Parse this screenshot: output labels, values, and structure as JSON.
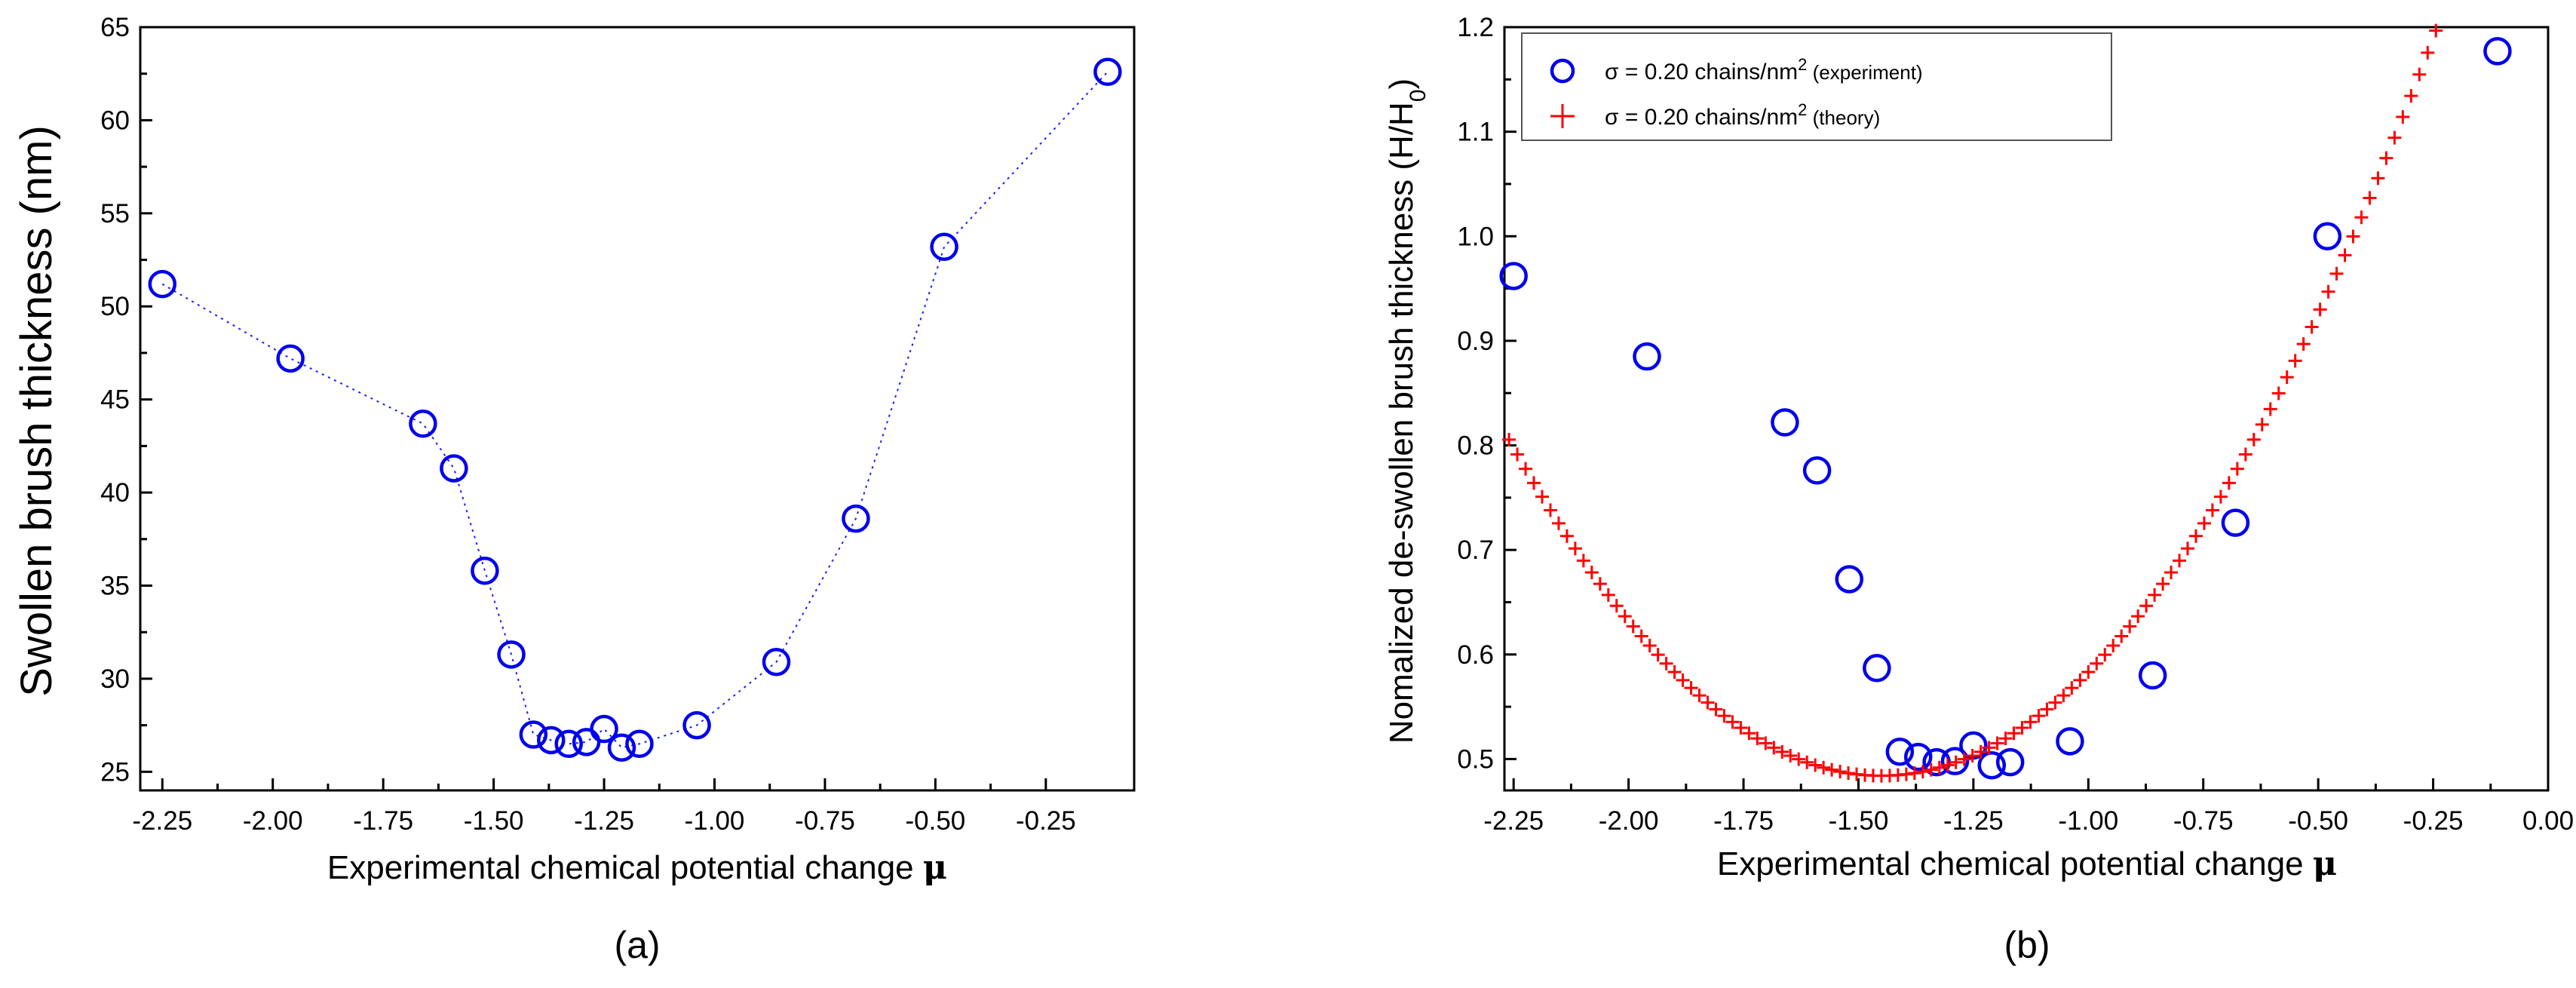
{
  "chart_data": [
    {
      "type": "line",
      "panel_label": "(a)",
      "xlabel": "Experimental chemical potential change",
      "xlabel_symbol": "μ",
      "ylabel": "Swollen brush thickness (nm)",
      "xlim": [
        -2.3,
        -0.05
      ],
      "ylim": [
        24,
        65
      ],
      "xticks": [
        -2.25,
        -2.0,
        -1.75,
        -1.5,
        -1.25,
        -1.0,
        -0.75,
        -0.5,
        -0.25
      ],
      "xtick_labels": [
        "-2.25",
        "-2.00",
        "-1.75",
        "-1.50",
        "-1.25",
        "-1.00",
        "-0.75",
        "-0.50",
        "-0.25"
      ],
      "yticks": [
        25,
        30,
        35,
        40,
        45,
        50,
        55,
        60,
        65
      ],
      "ytick_labels": [
        "25",
        "30",
        "35",
        "40",
        "45",
        "50",
        "55",
        "60",
        "65"
      ],
      "series": [
        {
          "name": "experiment",
          "color": "#0000ee",
          "x": [
            -2.25,
            -1.96,
            -1.66,
            -1.59,
            -1.52,
            -1.46,
            -1.41,
            -1.37,
            -1.33,
            -1.29,
            -1.25,
            -1.21,
            -1.17,
            -1.04,
            -0.86,
            -0.68,
            -0.48,
            -0.11
          ],
          "y": [
            51.2,
            47.2,
            43.7,
            41.3,
            35.8,
            31.3,
            27.0,
            26.7,
            26.5,
            26.6,
            27.3,
            26.3,
            26.5,
            27.5,
            30.9,
            38.6,
            53.2,
            62.6
          ]
        }
      ]
    },
    {
      "type": "scatter",
      "panel_label": "(b)",
      "xlabel": "Experimental chemical potential change",
      "xlabel_symbol": "μ",
      "ylabel_main": "Nomalized de-swollen brush thickness (H/H",
      "ylabel_sub": "0",
      "ylabel_end": ")",
      "xlim": [
        -2.27,
        0.0
      ],
      "ylim": [
        0.47,
        1.2
      ],
      "xticks": [
        -2.25,
        -2.0,
        -1.75,
        -1.5,
        -1.25,
        -1.0,
        -0.75,
        -0.5,
        -0.25,
        0.0
      ],
      "xtick_labels": [
        "-2.25",
        "-2.00",
        "-1.75",
        "-1.50",
        "-1.25",
        "-1.00",
        "-0.75",
        "-0.50",
        "-0.25",
        "0.00"
      ],
      "yticks": [
        0.5,
        0.6,
        0.7,
        0.8,
        0.9,
        1.0,
        1.1,
        1.2
      ],
      "ytick_labels": [
        "0.5",
        "0.6",
        "0.7",
        "0.8",
        "0.9",
        "1.0",
        "1.1",
        "1.2"
      ],
      "legend": [
        {
          "prefix": "σ = 0.20 chains/nm",
          "sup": "2",
          "suffix": " (experiment)"
        },
        {
          "prefix": "σ = 0.20 chains/nm",
          "sup": "2",
          "suffix": " (theory)"
        }
      ],
      "legend_position": "top-left",
      "series": [
        {
          "name": "experiment",
          "color": "#0000ee",
          "x": [
            -2.25,
            -1.96,
            -1.66,
            -1.59,
            -1.52,
            -1.46,
            -1.41,
            -1.37,
            -1.33,
            -1.29,
            -1.25,
            -1.21,
            -1.17,
            -1.04,
            -0.86,
            -0.68,
            -0.48,
            -0.11
          ],
          "y": [
            0.962,
            0.885,
            0.822,
            0.776,
            0.672,
            0.587,
            0.507,
            0.502,
            0.497,
            0.498,
            0.513,
            0.494,
            0.497,
            0.517,
            0.58,
            0.726,
            1.0,
            1.177
          ]
        },
        {
          "name": "theory",
          "color": "#ff0000",
          "model": "quadratic",
          "x_start": -2.26,
          "x_end": -0.03,
          "x_step": 0.018,
          "vertex_x": -1.45,
          "vertex_y": 0.484,
          "curvature": 0.49
        }
      ]
    }
  ]
}
